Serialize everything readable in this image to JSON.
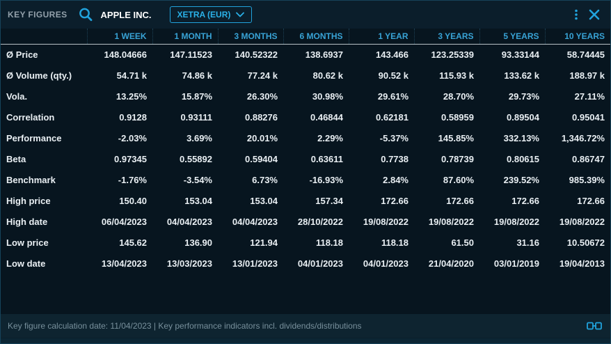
{
  "header": {
    "title": "KEY FIGURES",
    "instrument": "APPLE INC.",
    "exchange_dropdown": "XETRA (EUR)"
  },
  "table": {
    "columns": [
      "1 WEEK",
      "1 MONTH",
      "3 MONTHS",
      "6 MONTHS",
      "1 YEAR",
      "3 YEARS",
      "5 YEARS",
      "10 YEARS"
    ],
    "rows": [
      {
        "label": "Ø Price",
        "values": [
          "148.04666",
          "147.11523",
          "140.52322",
          "138.6937",
          "143.466",
          "123.25339",
          "93.33144",
          "58.74445"
        ]
      },
      {
        "label": "Ø Volume (qty.)",
        "values": [
          "54.71 k",
          "74.86 k",
          "77.24 k",
          "80.62 k",
          "90.52 k",
          "115.93 k",
          "133.62 k",
          "188.97 k"
        ]
      },
      {
        "label": "Vola.",
        "values": [
          "13.25%",
          "15.87%",
          "26.30%",
          "30.98%",
          "29.61%",
          "28.70%",
          "29.73%",
          "27.11%"
        ]
      },
      {
        "label": "Correlation",
        "values": [
          "0.9128",
          "0.93111",
          "0.88276",
          "0.46844",
          "0.62181",
          "0.58959",
          "0.89504",
          "0.95041"
        ]
      },
      {
        "label": "Performance",
        "values": [
          "-2.03%",
          "3.69%",
          "20.01%",
          "2.29%",
          "-5.37%",
          "145.85%",
          "332.13%",
          "1,346.72%"
        ]
      },
      {
        "label": "Beta",
        "values": [
          "0.97345",
          "0.55892",
          "0.59404",
          "0.63611",
          "0.7738",
          "0.78739",
          "0.80615",
          "0.86747"
        ]
      },
      {
        "label": "Benchmark",
        "values": [
          "-1.76%",
          "-3.54%",
          "6.73%",
          "-16.93%",
          "2.84%",
          "87.60%",
          "239.52%",
          "985.39%"
        ]
      },
      {
        "label": "High price",
        "values": [
          "150.40",
          "153.04",
          "153.04",
          "157.34",
          "172.66",
          "172.66",
          "172.66",
          "172.66"
        ]
      },
      {
        "label": "High date",
        "values": [
          "06/04/2023",
          "04/04/2023",
          "04/04/2023",
          "28/10/2022",
          "19/08/2022",
          "19/08/2022",
          "19/08/2022",
          "19/08/2022"
        ]
      },
      {
        "label": "Low price",
        "values": [
          "145.62",
          "136.90",
          "121.94",
          "118.18",
          "118.18",
          "61.50",
          "31.16",
          "10.50672"
        ]
      },
      {
        "label": "Low date",
        "values": [
          "13/04/2023",
          "13/03/2023",
          "13/01/2023",
          "04/01/2023",
          "04/01/2023",
          "21/04/2020",
          "03/01/2019",
          "19/04/2013"
        ]
      }
    ]
  },
  "footer": {
    "text": "Key figure calculation date: 11/04/2023 | Key performance indicators incl. dividends/distributions"
  },
  "icons": {
    "search": "search-icon",
    "chevron": "chevron-down-icon",
    "menu": "kebab-menu-icon",
    "close": "close-icon",
    "link": "link-windows-icon"
  },
  "colors": {
    "background": "#07151f",
    "titlebar": "#0b1e2b",
    "footer_bar": "#0e2430",
    "accent_cyan": "#21a3dd",
    "column_header": "#38a3d6",
    "text_main": "#e9eff3",
    "text_muted": "#93a1ab",
    "text_footer": "#78909c"
  }
}
